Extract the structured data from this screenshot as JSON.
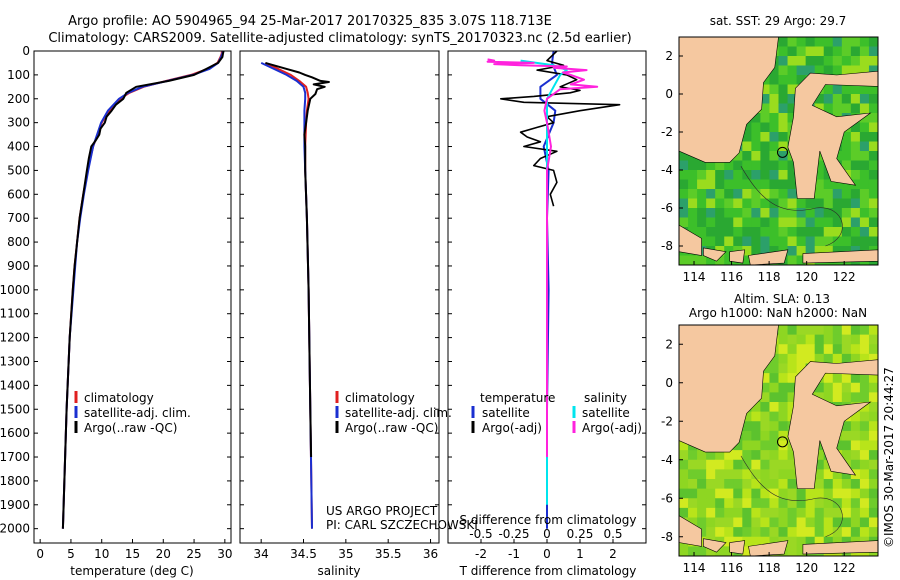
{
  "header": {
    "line1": "Argo profile: AO 5904965_94 25-Mar-2017 20170325_835 3.07S 118.713E",
    "line2": "Climatology: CARS2009. Satellite-adjusted climatology: synTS_20170323.nc (2.5d earlier)"
  },
  "colors": {
    "climatology": "#e02020",
    "satellite": "#1a2fd0",
    "argo": "#000000",
    "salinity_sat": "#00e5ee",
    "salinity_argo": "#ff22dd",
    "land": "#f5c8a0"
  },
  "credit": {
    "line1": "US ARGO PROJECT",
    "line2": "PI: CARL SZCZECHOWSKI"
  },
  "watermark": "©IMOS 30-Mar-2017 20:44:27",
  "depth_ticks": [
    0,
    100,
    200,
    300,
    400,
    500,
    600,
    700,
    800,
    900,
    1000,
    1100,
    1200,
    1300,
    1400,
    1500,
    1600,
    1700,
    1800,
    1900,
    2000
  ],
  "chart_data": [
    {
      "id": "temperature",
      "type": "line",
      "xlabel": "temperature (deg C)",
      "ylabel": "",
      "xlim": [
        -1,
        31
      ],
      "ylim": [
        0,
        2060
      ],
      "xticks": [
        0,
        5,
        10,
        15,
        20,
        25,
        30
      ],
      "xtick_labels": [
        "0",
        "5",
        "10",
        "15",
        "20",
        "25",
        "30"
      ],
      "legend": [
        "climatology",
        "satellite-adj. clim.",
        "Argo(..raw -QC)"
      ],
      "series": [
        {
          "name": "climatology",
          "depth": [
            0,
            10,
            25,
            50,
            75,
            100,
            125,
            150,
            175,
            200,
            250,
            300,
            400,
            500,
            600,
            700,
            800,
            900,
            1000,
            1200,
            1500,
            2000
          ],
          "values": [
            29.5,
            29.5,
            29.3,
            28.8,
            27.2,
            24.5,
            20.5,
            16.8,
            14.5,
            13.0,
            11.2,
            10.0,
            8.6,
            7.7,
            7.0,
            6.4,
            6.0,
            5.6,
            5.3,
            4.8,
            4.3,
            3.7
          ]
        },
        {
          "name": "satellite-adj. clim.",
          "depth": [
            0,
            10,
            25,
            50,
            75,
            100,
            125,
            150,
            175,
            200,
            250,
            300,
            400,
            500,
            600,
            700,
            800,
            900,
            1000,
            1200,
            1500,
            2000
          ],
          "values": [
            29.7,
            29.6,
            29.4,
            28.9,
            27.5,
            24.8,
            20.7,
            16.6,
            14.3,
            12.8,
            11.0,
            9.9,
            8.6,
            7.8,
            7.1,
            6.5,
            6.0,
            5.7,
            5.4,
            4.8,
            4.3,
            3.7
          ]
        },
        {
          "name": "Argo(..raw -QC)",
          "depth": [
            0,
            10,
            25,
            50,
            75,
            100,
            125,
            150,
            175,
            200,
            225,
            250,
            275,
            300,
            325,
            350,
            375,
            400,
            450,
            500,
            600,
            700,
            800,
            900,
            1000,
            1200,
            1500,
            2000
          ],
          "values": [
            29.8,
            29.7,
            29.6,
            28.9,
            27.0,
            25.0,
            20.9,
            15.6,
            14.0,
            13.5,
            12.3,
            11.6,
            10.8,
            10.5,
            9.8,
            9.6,
            9.0,
            8.3,
            7.9,
            7.6,
            7.0,
            6.4,
            6.0,
            5.6,
            5.3,
            4.8,
            4.3,
            3.7
          ]
        }
      ]
    },
    {
      "id": "salinity",
      "type": "line",
      "xlabel": "salinity",
      "ylabel": "",
      "xlim": [
        33.75,
        36.1
      ],
      "ylim": [
        0,
        2060
      ],
      "xticks": [
        34,
        34.5,
        35,
        35.5,
        36
      ],
      "xtick_labels": [
        "34",
        "34.5",
        "35",
        "35.5",
        "36"
      ],
      "legend": [
        "climatology",
        "satellite-adj. clim.",
        "Argo(..raw -QC)"
      ],
      "series": [
        {
          "name": "climatology",
          "depth": [
            50,
            75,
            100,
            125,
            150,
            175,
            200,
            250,
            300,
            400,
            500,
            700,
            1000,
            1500,
            2000
          ],
          "values": [
            34.05,
            34.2,
            34.35,
            34.45,
            34.53,
            34.55,
            34.56,
            34.54,
            34.53,
            34.52,
            34.52,
            34.54,
            34.56,
            34.58,
            34.6
          ]
        },
        {
          "name": "satellite-adj. clim.",
          "depth": [
            50,
            75,
            100,
            125,
            150,
            175,
            200,
            250,
            300,
            400,
            500,
            700,
            1000,
            1500,
            2000
          ],
          "values": [
            34.0,
            34.15,
            34.3,
            34.42,
            34.5,
            34.52,
            34.52,
            34.51,
            34.51,
            34.51,
            34.52,
            34.54,
            34.56,
            34.58,
            34.6
          ]
        },
        {
          "name": "Argo(..raw -QC)",
          "depth": [
            50,
            75,
            90,
            100,
            110,
            125,
            130,
            140,
            150,
            160,
            180,
            200,
            250,
            300,
            350,
            400,
            500,
            700,
            1000,
            1500,
            1700
          ],
          "values": [
            34.05,
            34.3,
            34.45,
            34.52,
            34.6,
            34.7,
            34.8,
            34.62,
            34.75,
            34.66,
            34.64,
            34.58,
            34.55,
            34.53,
            34.51,
            34.52,
            34.52,
            34.54,
            34.56,
            34.58,
            34.59
          ]
        }
      ]
    },
    {
      "id": "difference",
      "type": "line",
      "xlabel": "T difference from climatology",
      "x2label": "S difference from climatology",
      "xlim": [
        -3,
        3
      ],
      "ylim": [
        0,
        2060
      ],
      "xticks": [
        -2,
        -1,
        0,
        1,
        2
      ],
      "xtick_labels": [
        "-2",
        "-1",
        "0",
        "1",
        "2"
      ],
      "x2ticks": [
        -0.5,
        -0.25,
        0,
        0.25,
        0.5
      ],
      "x2tick_labels": [
        "-0.5",
        "-0.25",
        "0",
        "0.25",
        "0.5"
      ],
      "legend_titles": [
        "temperature",
        "salinity"
      ],
      "legend": [
        "satellite",
        "Argo(-adj)",
        "satellite",
        "Argo(-adj)"
      ],
      "series": [
        {
          "name": "temperature satellite",
          "depth": [
            0,
            50,
            100,
            150,
            200,
            250,
            300,
            400,
            500,
            700,
            1000,
            1500,
            2000
          ],
          "values": [
            0.2,
            0.15,
            0.3,
            -0.2,
            -0.2,
            0.25,
            0.2,
            -0.1,
            0.05,
            0.0,
            0.05,
            0.0,
            0.0
          ]
        },
        {
          "name": "temperature Argo(-adj)",
          "depth": [
            0,
            40,
            60,
            80,
            100,
            120,
            150,
            165,
            175,
            190,
            200,
            215,
            225,
            250,
            275,
            300,
            320,
            340,
            360,
            380,
            400,
            420,
            450,
            480,
            500,
            550,
            600,
            650
          ],
          "values": [
            0.3,
            0.0,
            0.5,
            -0.3,
            0.6,
            0.9,
            0.4,
            1.0,
            0.7,
            -0.4,
            -1.4,
            -0.7,
            2.2,
            1.0,
            0.0,
            0.2,
            -0.3,
            -0.8,
            -0.6,
            -0.2,
            -0.7,
            0.3,
            -0.2,
            -0.4,
            0.2,
            0.3,
            0.1,
            0.2
          ]
        },
        {
          "name": "salinity satellite",
          "depth": [
            40,
            60,
            80,
            100,
            150,
            200,
            250,
            300,
            400,
            500,
            700,
            1000,
            1500,
            1900
          ],
          "values": [
            -0.2,
            0.05,
            0.15,
            0.1,
            0.05,
            0.0,
            0.0,
            0.0,
            0.0,
            0.0,
            0.0,
            0.0,
            0.0,
            0.0
          ]
        },
        {
          "name": "salinity Argo(-adj)",
          "depth": [
            35,
            40,
            45,
            50,
            55,
            60,
            65,
            70,
            80,
            90,
            100,
            120,
            140,
            150,
            160,
            180,
            200,
            250,
            300,
            400,
            500,
            600,
            700,
            1000,
            1700
          ],
          "values": [
            -0.45,
            -0.4,
            -0.45,
            -0.1,
            -0.4,
            -0.2,
            0.15,
            0.05,
            0.3,
            0.12,
            0.18,
            0.28,
            0.18,
            0.38,
            0.1,
            0.05,
            0.0,
            -0.02,
            0.0,
            0.03,
            0.0,
            0.0,
            0.0,
            0.0,
            0.0
          ]
        }
      ]
    },
    {
      "id": "sst_map",
      "type": "heatmap",
      "title": "sat. SST: 29 Argo: 29.7",
      "xlim": [
        113.2,
        123.8
      ],
      "ylim": [
        -9.0,
        3.0
      ],
      "xticks": [
        114,
        116,
        118,
        120,
        122
      ],
      "xtick_labels": [
        "114",
        "116",
        "118",
        "120",
        "122"
      ],
      "yticks": [
        2,
        0,
        -2,
        -4,
        -6,
        -8
      ],
      "ytick_labels": [
        "2",
        "0",
        "-2",
        "-4",
        "-6",
        "-8"
      ],
      "float_position": [
        118.713,
        -3.07
      ]
    },
    {
      "id": "sla_map",
      "type": "heatmap",
      "title": "Altim. SLA: 0.13",
      "subtitle": "Argo h1000: NaN h2000: NaN",
      "xlim": [
        113.2,
        123.8
      ],
      "ylim": [
        -9.0,
        3.0
      ],
      "xticks": [
        114,
        116,
        118,
        120,
        122
      ],
      "xtick_labels": [
        "114",
        "116",
        "118",
        "120",
        "122"
      ],
      "yticks": [
        2,
        0,
        -2,
        -4,
        -6,
        -8
      ],
      "ytick_labels": [
        "2",
        "0",
        "-2",
        "-4",
        "-6",
        "-8"
      ],
      "float_position": [
        118.713,
        -3.07
      ]
    }
  ]
}
